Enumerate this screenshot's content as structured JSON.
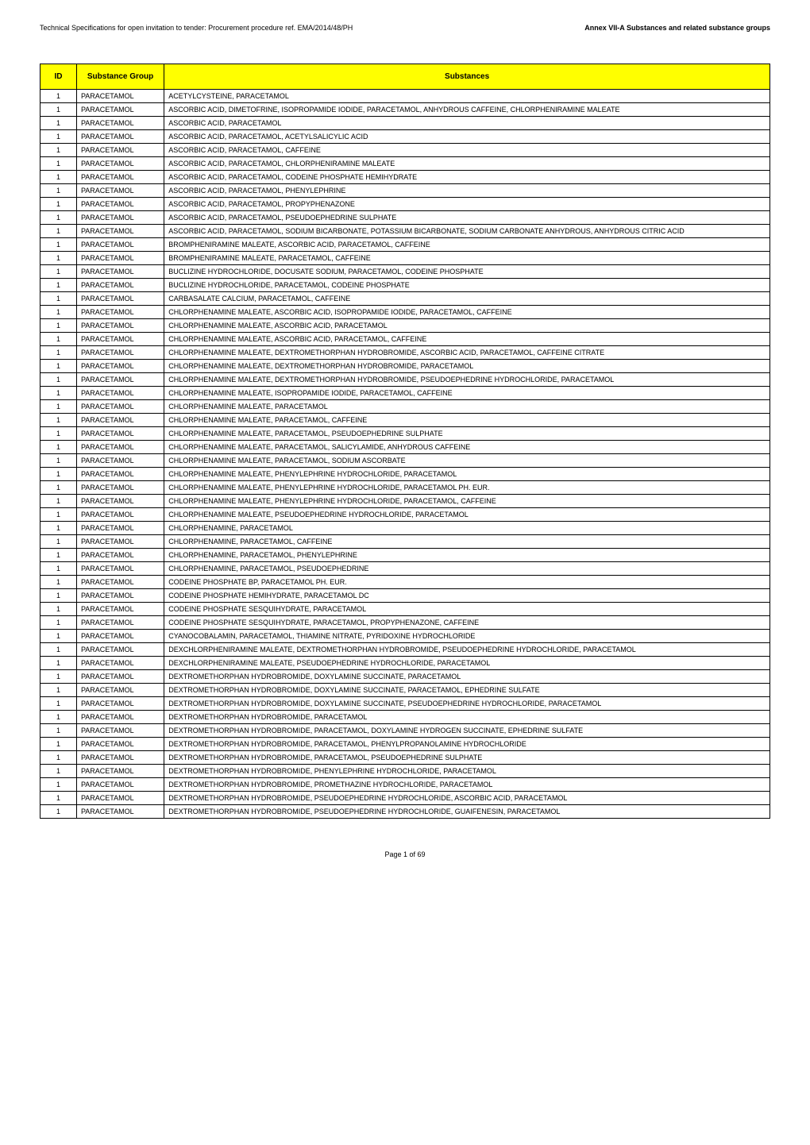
{
  "header": {
    "left": "Technical Specifications for open invitation to tender: Procurement procedure ref. EMA/2014/48/PH",
    "right": "Annex VII-A Substances and related substance groups"
  },
  "table": {
    "columns": [
      "ID",
      "Substance Group",
      "Substances"
    ],
    "rows": [
      [
        "1",
        "PARACETAMOL",
        "ACETYLCYSTEINE, PARACETAMOL"
      ],
      [
        "1",
        "PARACETAMOL",
        "ASCORBIC ACID, DIMETOFRINE, ISOPROPAMIDE IODIDE, PARACETAMOL, ANHYDROUS CAFFEINE, CHLORPHENIRAMINE MALEATE"
      ],
      [
        "1",
        "PARACETAMOL",
        "ASCORBIC ACID, PARACETAMOL"
      ],
      [
        "1",
        "PARACETAMOL",
        "ASCORBIC ACID, PARACETAMOL, ACETYLSALICYLIC ACID"
      ],
      [
        "1",
        "PARACETAMOL",
        "ASCORBIC ACID, PARACETAMOL, CAFFEINE"
      ],
      [
        "1",
        "PARACETAMOL",
        "ASCORBIC ACID, PARACETAMOL, CHLORPHENIRAMINE MALEATE"
      ],
      [
        "1",
        "PARACETAMOL",
        "ASCORBIC ACID, PARACETAMOL, CODEINE PHOSPHATE HEMIHYDRATE"
      ],
      [
        "1",
        "PARACETAMOL",
        "ASCORBIC ACID, PARACETAMOL, PHENYLEPHRINE"
      ],
      [
        "1",
        "PARACETAMOL",
        "ASCORBIC ACID, PARACETAMOL, PROPYPHENAZONE"
      ],
      [
        "1",
        "PARACETAMOL",
        "ASCORBIC ACID, PARACETAMOL, PSEUDOEPHEDRINE SULPHATE"
      ],
      [
        "1",
        "PARACETAMOL",
        "ASCORBIC ACID, PARACETAMOL, SODIUM BICARBONATE, POTASSIUM BICARBONATE, SODIUM CARBONATE ANHYDROUS, ANHYDROUS CITRIC ACID"
      ],
      [
        "1",
        "PARACETAMOL",
        "BROMPHENIRAMINE MALEATE, ASCORBIC ACID, PARACETAMOL, CAFFEINE"
      ],
      [
        "1",
        "PARACETAMOL",
        "BROMPHENIRAMINE MALEATE, PARACETAMOL, CAFFEINE"
      ],
      [
        "1",
        "PARACETAMOL",
        "BUCLIZINE HYDROCHLORIDE, DOCUSATE SODIUM, PARACETAMOL, CODEINE PHOSPHATE"
      ],
      [
        "1",
        "PARACETAMOL",
        "BUCLIZINE HYDROCHLORIDE, PARACETAMOL, CODEINE PHOSPHATE"
      ],
      [
        "1",
        "PARACETAMOL",
        "CARBASALATE CALCIUM, PARACETAMOL, CAFFEINE"
      ],
      [
        "1",
        "PARACETAMOL",
        "CHLORPHENAMINE MALEATE, ASCORBIC ACID, ISOPROPAMIDE IODIDE, PARACETAMOL, CAFFEINE"
      ],
      [
        "1",
        "PARACETAMOL",
        "CHLORPHENAMINE MALEATE, ASCORBIC ACID, PARACETAMOL"
      ],
      [
        "1",
        "PARACETAMOL",
        "CHLORPHENAMINE MALEATE, ASCORBIC ACID, PARACETAMOL, CAFFEINE"
      ],
      [
        "1",
        "PARACETAMOL",
        "CHLORPHENAMINE MALEATE, DEXTROMETHORPHAN HYDROBROMIDE, ASCORBIC ACID, PARACETAMOL, CAFFEINE CITRATE"
      ],
      [
        "1",
        "PARACETAMOL",
        "CHLORPHENAMINE MALEATE, DEXTROMETHORPHAN HYDROBROMIDE, PARACETAMOL"
      ],
      [
        "1",
        "PARACETAMOL",
        "CHLORPHENAMINE MALEATE, DEXTROMETHORPHAN HYDROBROMIDE, PSEUDOEPHEDRINE HYDROCHLORIDE, PARACETAMOL"
      ],
      [
        "1",
        "PARACETAMOL",
        "CHLORPHENAMINE MALEATE, ISOPROPAMIDE IODIDE, PARACETAMOL, CAFFEINE"
      ],
      [
        "1",
        "PARACETAMOL",
        "CHLORPHENAMINE MALEATE, PARACETAMOL"
      ],
      [
        "1",
        "PARACETAMOL",
        "CHLORPHENAMINE MALEATE, PARACETAMOL, CAFFEINE"
      ],
      [
        "1",
        "PARACETAMOL",
        "CHLORPHENAMINE MALEATE, PARACETAMOL, PSEUDOEPHEDRINE SULPHATE"
      ],
      [
        "1",
        "PARACETAMOL",
        "CHLORPHENAMINE MALEATE, PARACETAMOL, SALICYLAMIDE, ANHYDROUS CAFFEINE"
      ],
      [
        "1",
        "PARACETAMOL",
        "CHLORPHENAMINE MALEATE, PARACETAMOL, SODIUM ASCORBATE"
      ],
      [
        "1",
        "PARACETAMOL",
        "CHLORPHENAMINE MALEATE, PHENYLEPHRINE HYDROCHLORIDE, PARACETAMOL"
      ],
      [
        "1",
        "PARACETAMOL",
        "CHLORPHENAMINE MALEATE, PHENYLEPHRINE HYDROCHLORIDE, PARACETAMOL PH. EUR."
      ],
      [
        "1",
        "PARACETAMOL",
        "CHLORPHENAMINE MALEATE, PHENYLEPHRINE HYDROCHLORIDE, PARACETAMOL, CAFFEINE"
      ],
      [
        "1",
        "PARACETAMOL",
        "CHLORPHENAMINE MALEATE, PSEUDOEPHEDRINE HYDROCHLORIDE, PARACETAMOL"
      ],
      [
        "1",
        "PARACETAMOL",
        "CHLORPHENAMINE, PARACETAMOL"
      ],
      [
        "1",
        "PARACETAMOL",
        "CHLORPHENAMINE, PARACETAMOL, CAFFEINE"
      ],
      [
        "1",
        "PARACETAMOL",
        "CHLORPHENAMINE, PARACETAMOL, PHENYLEPHRINE"
      ],
      [
        "1",
        "PARACETAMOL",
        "CHLORPHENAMINE, PARACETAMOL, PSEUDOEPHEDRINE"
      ],
      [
        "1",
        "PARACETAMOL",
        "CODEINE PHOSPHATE BP, PARACETAMOL PH. EUR."
      ],
      [
        "1",
        "PARACETAMOL",
        "CODEINE PHOSPHATE HEMIHYDRATE, PARACETAMOL DC"
      ],
      [
        "1",
        "PARACETAMOL",
        "CODEINE PHOSPHATE SESQUIHYDRATE, PARACETAMOL"
      ],
      [
        "1",
        "PARACETAMOL",
        "CODEINE PHOSPHATE SESQUIHYDRATE, PARACETAMOL, PROPYPHENAZONE, CAFFEINE"
      ],
      [
        "1",
        "PARACETAMOL",
        "CYANOCOBALAMIN, PARACETAMOL, THIAMINE NITRATE, PYRIDOXINE HYDROCHLORIDE"
      ],
      [
        "1",
        "PARACETAMOL",
        "DEXCHLORPHENIRAMINE MALEATE, DEXTROMETHORPHAN HYDROBROMIDE, PSEUDOEPHEDRINE HYDROCHLORIDE, PARACETAMOL"
      ],
      [
        "1",
        "PARACETAMOL",
        "DEXCHLORPHENIRAMINE MALEATE, PSEUDOEPHEDRINE HYDROCHLORIDE, PARACETAMOL"
      ],
      [
        "1",
        "PARACETAMOL",
        "DEXTROMETHORPHAN HYDROBROMIDE, DOXYLAMINE SUCCINATE, PARACETAMOL"
      ],
      [
        "1",
        "PARACETAMOL",
        "DEXTROMETHORPHAN HYDROBROMIDE, DOXYLAMINE SUCCINATE, PARACETAMOL, EPHEDRINE SULFATE"
      ],
      [
        "1",
        "PARACETAMOL",
        "DEXTROMETHORPHAN HYDROBROMIDE, DOXYLAMINE SUCCINATE, PSEUDOEPHEDRINE HYDROCHLORIDE, PARACETAMOL"
      ],
      [
        "1",
        "PARACETAMOL",
        "DEXTROMETHORPHAN HYDROBROMIDE, PARACETAMOL"
      ],
      [
        "1",
        "PARACETAMOL",
        "DEXTROMETHORPHAN HYDROBROMIDE, PARACETAMOL, DOXYLAMINE HYDROGEN SUCCINATE, EPHEDRINE SULFATE"
      ],
      [
        "1",
        "PARACETAMOL",
        "DEXTROMETHORPHAN HYDROBROMIDE, PARACETAMOL, PHENYLPROPANOLAMINE HYDROCHLORIDE"
      ],
      [
        "1",
        "PARACETAMOL",
        "DEXTROMETHORPHAN HYDROBROMIDE, PARACETAMOL, PSEUDOEPHEDRINE SULPHATE"
      ],
      [
        "1",
        "PARACETAMOL",
        "DEXTROMETHORPHAN HYDROBROMIDE, PHENYLEPHRINE HYDROCHLORIDE, PARACETAMOL"
      ],
      [
        "1",
        "PARACETAMOL",
        "DEXTROMETHORPHAN HYDROBROMIDE, PROMETHAZINE HYDROCHLORIDE, PARACETAMOL"
      ],
      [
        "1",
        "PARACETAMOL",
        "DEXTROMETHORPHAN HYDROBROMIDE, PSEUDOEPHEDRINE HYDROCHLORIDE, ASCORBIC ACID, PARACETAMOL"
      ],
      [
        "1",
        "PARACETAMOL",
        "DEXTROMETHORPHAN HYDROBROMIDE, PSEUDOEPHEDRINE HYDROCHLORIDE, GUAIFENESIN, PARACETAMOL"
      ]
    ]
  },
  "footer": {
    "text": "Page 1 of 69"
  }
}
